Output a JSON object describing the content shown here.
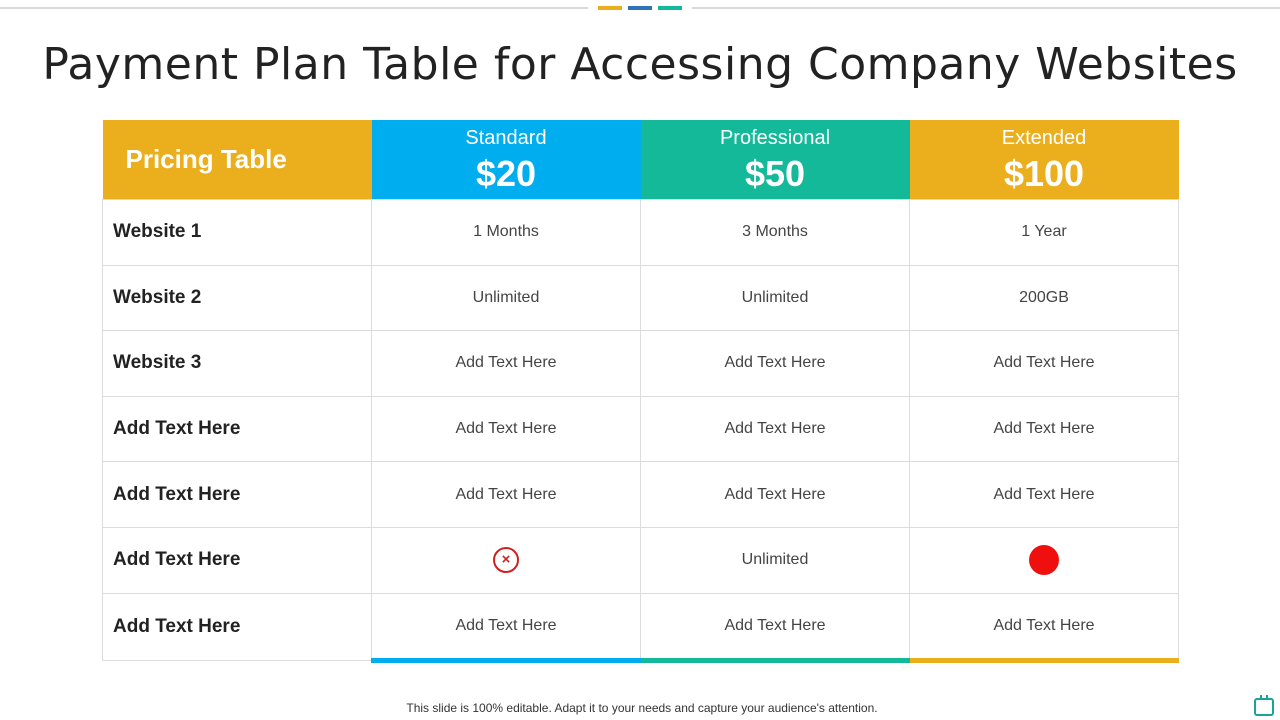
{
  "title": "Payment Plan Table for Accessing Company Websites",
  "accent_colors": [
    "#ebaf1e",
    "#2f74b8",
    "#14b99a"
  ],
  "table": {
    "header_label": "Pricing Table",
    "header_label_color": "#ebaf1e",
    "plans": [
      {
        "name": "Standard",
        "price": "$20",
        "color": "#00aeef"
      },
      {
        "name": "Professional",
        "price": "$50",
        "color": "#14b99a"
      },
      {
        "name": "Extended",
        "price": "$100",
        "color": "#ebaf1e"
      }
    ],
    "rows": [
      {
        "feature": "Website 1",
        "cells": [
          {
            "text": "1 Months"
          },
          {
            "text": "3 Months"
          },
          {
            "text": "1 Year"
          }
        ]
      },
      {
        "feature": "Website 2",
        "cells": [
          {
            "text": "Unlimited"
          },
          {
            "text": "Unlimited"
          },
          {
            "text": "200GB"
          }
        ]
      },
      {
        "feature": "Website 3",
        "cells": [
          {
            "text": "Add Text Here"
          },
          {
            "text": "Add Text Here"
          },
          {
            "text": "Add Text Here"
          }
        ]
      },
      {
        "feature": "Add Text Here",
        "cells": [
          {
            "text": "Add Text Here"
          },
          {
            "text": "Add Text Here"
          },
          {
            "text": "Add Text Here"
          }
        ]
      },
      {
        "feature": "Add Text Here",
        "cells": [
          {
            "text": "Add Text Here"
          },
          {
            "text": "Add Text Here"
          },
          {
            "text": "Add Text Here"
          }
        ]
      },
      {
        "feature": "Add Text Here",
        "cells": [
          {
            "icon": "cross-circle-icon"
          },
          {
            "text": "Unlimited"
          },
          {
            "icon": "red-dot-icon"
          }
        ]
      },
      {
        "feature": "Add Text Here",
        "cells": [
          {
            "text": "Add Text Here"
          },
          {
            "text": "Add Text Here"
          },
          {
            "text": "Add Text Here"
          }
        ]
      }
    ]
  },
  "footer": "This slide is 100% editable. Adapt it to your needs and capture your audience's attention.",
  "corner_icon": "calendar-icon"
}
